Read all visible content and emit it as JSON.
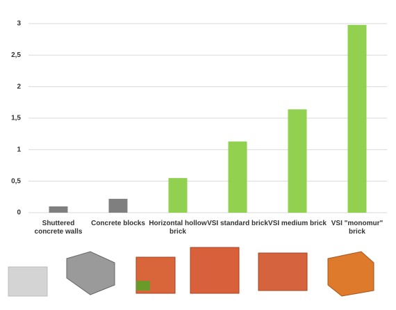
{
  "chart_data": {
    "type": "bar",
    "categories": [
      "Shuttered concrete walls",
      "Concrete blocks",
      "Horizontal hollow brick",
      "VSI standard brick",
      "VSI medium brick",
      "VSI \"monomur\" brick"
    ],
    "values": [
      0.1,
      0.22,
      0.55,
      1.13,
      1.64,
      2.98
    ],
    "colors": [
      "#7f7f7f",
      "#7f7f7f",
      "#92d050",
      "#92d050",
      "#92d050",
      "#92d050"
    ],
    "ylim": [
      0,
      3
    ],
    "yticks": [
      0,
      {
        "value": 0.5,
        "label": "0,5"
      },
      1,
      {
        "value": 1.5,
        "label": "1,5"
      },
      2,
      {
        "value": 2.5,
        "label": "2,5"
      },
      3
    ],
    "grid": true
  }
}
